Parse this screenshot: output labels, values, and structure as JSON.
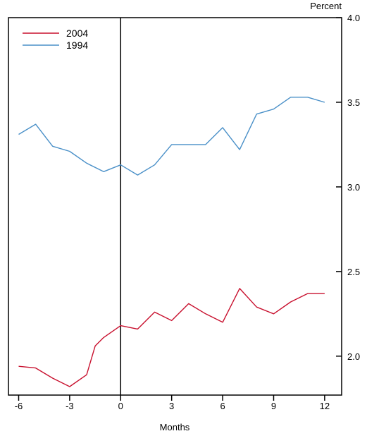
{
  "chart_data": {
    "type": "line",
    "title": "",
    "xlabel": "Months",
    "ylabel": "Percent",
    "xlim": [
      -6.6,
      13.0
    ],
    "ylim": [
      1.77,
      4.0
    ],
    "x_ticks": [
      -6,
      -3,
      0,
      3,
      6,
      9,
      12
    ],
    "x_tick_labels": [
      "-6",
      "-3",
      "0",
      "3",
      "6",
      "9",
      "12"
    ],
    "y_ticks": [
      2.0,
      2.5,
      3.0,
      3.5,
      4.0
    ],
    "y_tick_labels": [
      "2.0",
      "2.5",
      "3.0",
      "3.5",
      "4.0"
    ],
    "reference_line_x": 0,
    "legend_position": "top-left",
    "grid": false,
    "series": [
      {
        "name": "2004",
        "color": "#c8102e",
        "x": [
          -6,
          -5,
          -4,
          -3,
          -2,
          -1.5,
          -1,
          0,
          1,
          2,
          3,
          4,
          5,
          6,
          7,
          8,
          9,
          10,
          11,
          12
        ],
        "y": [
          1.94,
          1.93,
          1.87,
          1.82,
          1.89,
          2.06,
          2.11,
          2.18,
          2.16,
          2.26,
          2.21,
          2.31,
          2.25,
          2.2,
          2.4,
          2.29,
          2.25,
          2.32,
          2.37,
          2.37
        ]
      },
      {
        "name": "1994",
        "color": "#4a90c8",
        "x": [
          -6,
          -5,
          -4,
          -3,
          -2,
          -1,
          0,
          1,
          2,
          3,
          4,
          5,
          6,
          7,
          8,
          9,
          10,
          11,
          12
        ],
        "y": [
          3.31,
          3.37,
          3.24,
          3.21,
          3.14,
          3.09,
          3.13,
          3.07,
          3.13,
          3.25,
          3.25,
          3.25,
          3.35,
          3.22,
          3.43,
          3.46,
          3.53,
          3.53,
          3.5
        ]
      }
    ]
  }
}
